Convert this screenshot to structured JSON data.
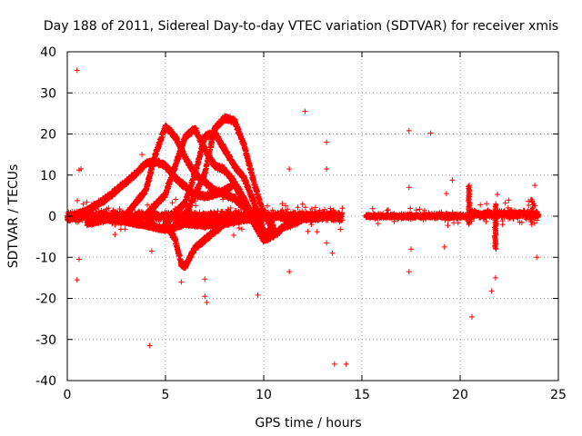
{
  "chart_data": {
    "type": "scatter",
    "title": "Day 188 of 2011, Sidereal Day-to-day VTEC variation (SDTVAR) for receiver xmis",
    "xlabel": "GPS time / hours",
    "ylabel": "SDTVAR / TECUs",
    "xlim": [
      0,
      25
    ],
    "ylim": [
      -40,
      40
    ],
    "xticks": [
      0,
      5,
      10,
      15,
      20,
      25
    ],
    "yticks": [
      -40,
      -30,
      -20,
      -10,
      0,
      10,
      20,
      30,
      40
    ],
    "x_tick_labels": [
      "0",
      "5",
      "10",
      "15",
      "20",
      "25"
    ],
    "y_tick_labels": [
      "-40",
      "-30",
      "-20",
      "-10",
      "0",
      "10",
      "20",
      "30",
      "40"
    ],
    "grid": true,
    "marker": "+",
    "color": "#ff0000",
    "series": [
      {
        "name": "SDTVAR",
        "description_points": "dense tracks plus outliers",
        "outliers": [
          [
            0.5,
            35.5
          ],
          [
            0.6,
            11.2
          ],
          [
            0.7,
            11.5
          ],
          [
            0.5,
            -15.5
          ],
          [
            0.6,
            -10.5
          ],
          [
            4.2,
            -31.5
          ],
          [
            3.8,
            15.0
          ],
          [
            4.3,
            -8.5
          ],
          [
            12.1,
            25.5
          ],
          [
            13.2,
            18.0
          ],
          [
            13.6,
            -36.0
          ],
          [
            11.3,
            11.5
          ],
          [
            11.3,
            -13.5
          ],
          [
            13.2,
            -6.5
          ],
          [
            13.2,
            11.5
          ],
          [
            13.5,
            -9.0
          ],
          [
            9.7,
            -19.2
          ],
          [
            7.0,
            -19.5
          ],
          [
            7.1,
            -21.0
          ],
          [
            7.0,
            -15.3
          ],
          [
            5.8,
            -16.0
          ],
          [
            17.4,
            20.8
          ],
          [
            18.5,
            20.2
          ],
          [
            17.4,
            -13.5
          ],
          [
            17.5,
            -8.0
          ],
          [
            17.4,
            7.0
          ],
          [
            19.3,
            5.5
          ],
          [
            19.2,
            -7.5
          ],
          [
            19.6,
            8.8
          ],
          [
            20.6,
            -24.5
          ],
          [
            21.6,
            -18.2
          ],
          [
            21.8,
            -15.0
          ],
          [
            21.9,
            5.3
          ],
          [
            23.9,
            -10.0
          ],
          [
            23.8,
            7.5
          ],
          [
            23.6,
            4.0
          ],
          [
            14.2,
            -36.0
          ]
        ],
        "tracks": [
          {
            "x": [
              0.0,
              1.0,
              2.0,
              2.5,
              3.0,
              3.5,
              4.0,
              4.5,
              5.0,
              5.5,
              6.0,
              6.5,
              7.0,
              7.5,
              8.0,
              8.5,
              9.0,
              9.5,
              10.0,
              10.5,
              11.0,
              12.0,
              13.0,
              13.5
            ],
            "y": [
              -1.0,
              1.0,
              4.0,
              6.0,
              8.0,
              10.0,
              12.5,
              13.0,
              12.0,
              9.0,
              7.0,
              5.0,
              4.5,
              5.0,
              6.0,
              7.5,
              3.0,
              -2.0,
              -6.0,
              -5.0,
              -3.0,
              -1.0,
              -0.5,
              0.0
            ]
          },
          {
            "x": [
              3.0,
              4.0,
              4.5,
              5.0,
              5.5,
              6.0,
              6.5,
              7.0,
              7.5,
              8.0,
              8.5,
              9.0,
              9.5,
              10.0,
              10.5
            ],
            "y": [
              0.0,
              6.0,
              15.0,
              21.5,
              19.0,
              14.0,
              10.0,
              8.0,
              6.0,
              5.0,
              4.0,
              2.0,
              -2.0,
              -5.0,
              -3.0
            ]
          },
          {
            "x": [
              4.0,
              5.0,
              5.5,
              6.0,
              6.5,
              7.0,
              7.5,
              8.0,
              8.5,
              9.0,
              9.5,
              10.0
            ],
            "y": [
              0.0,
              5.0,
              12.0,
              19.0,
              21.0,
              16.0,
              12.0,
              11.0,
              8.0,
              4.0,
              -1.0,
              -4.0
            ]
          },
          {
            "x": [
              5.0,
              6.0,
              6.5,
              7.0,
              7.5,
              8.0,
              8.5,
              9.0,
              9.5,
              10.0
            ],
            "y": [
              -2.0,
              3.0,
              10.0,
              19.0,
              20.0,
              16.0,
              12.0,
              9.0,
              3.0,
              -4.0
            ]
          },
          {
            "x": [
              6.0,
              7.0,
              7.5,
              8.0,
              8.5,
              9.0,
              9.5,
              10.0,
              10.5
            ],
            "y": [
              0.0,
              10.0,
              21.0,
              23.5,
              23.0,
              17.0,
              8.0,
              0.0,
              -3.0
            ]
          },
          {
            "x": [
              5.0,
              5.5,
              5.8,
              6.0,
              6.5,
              7.0,
              7.5,
              8.0
            ],
            "y": [
              -2.0,
              -6.0,
              -12.0,
              -12.5,
              -8.0,
              -6.0,
              -4.0,
              -2.0
            ]
          },
          {
            "x": [
              1.0,
              2.0,
              3.0,
              4.0,
              5.0,
              6.0,
              7.0,
              8.0,
              9.0,
              10.0
            ],
            "y": [
              -2.0,
              -1.0,
              -1.5,
              -2.5,
              -3.5,
              -2.0,
              -2.5,
              -2.0,
              -1.0,
              -1.0
            ]
          }
        ],
        "noise_bands": [
          {
            "x_range": [
              0.0,
              14.0
            ],
            "y_center": 0.0,
            "spread": 3.0
          },
          {
            "x_range": [
              15.2,
              20.5
            ],
            "y_center": 0.0,
            "spread": 1.5
          },
          {
            "x_range": [
              20.5,
              24.0
            ],
            "y_center": 0.5,
            "spread": 2.5
          }
        ]
      }
    ]
  }
}
